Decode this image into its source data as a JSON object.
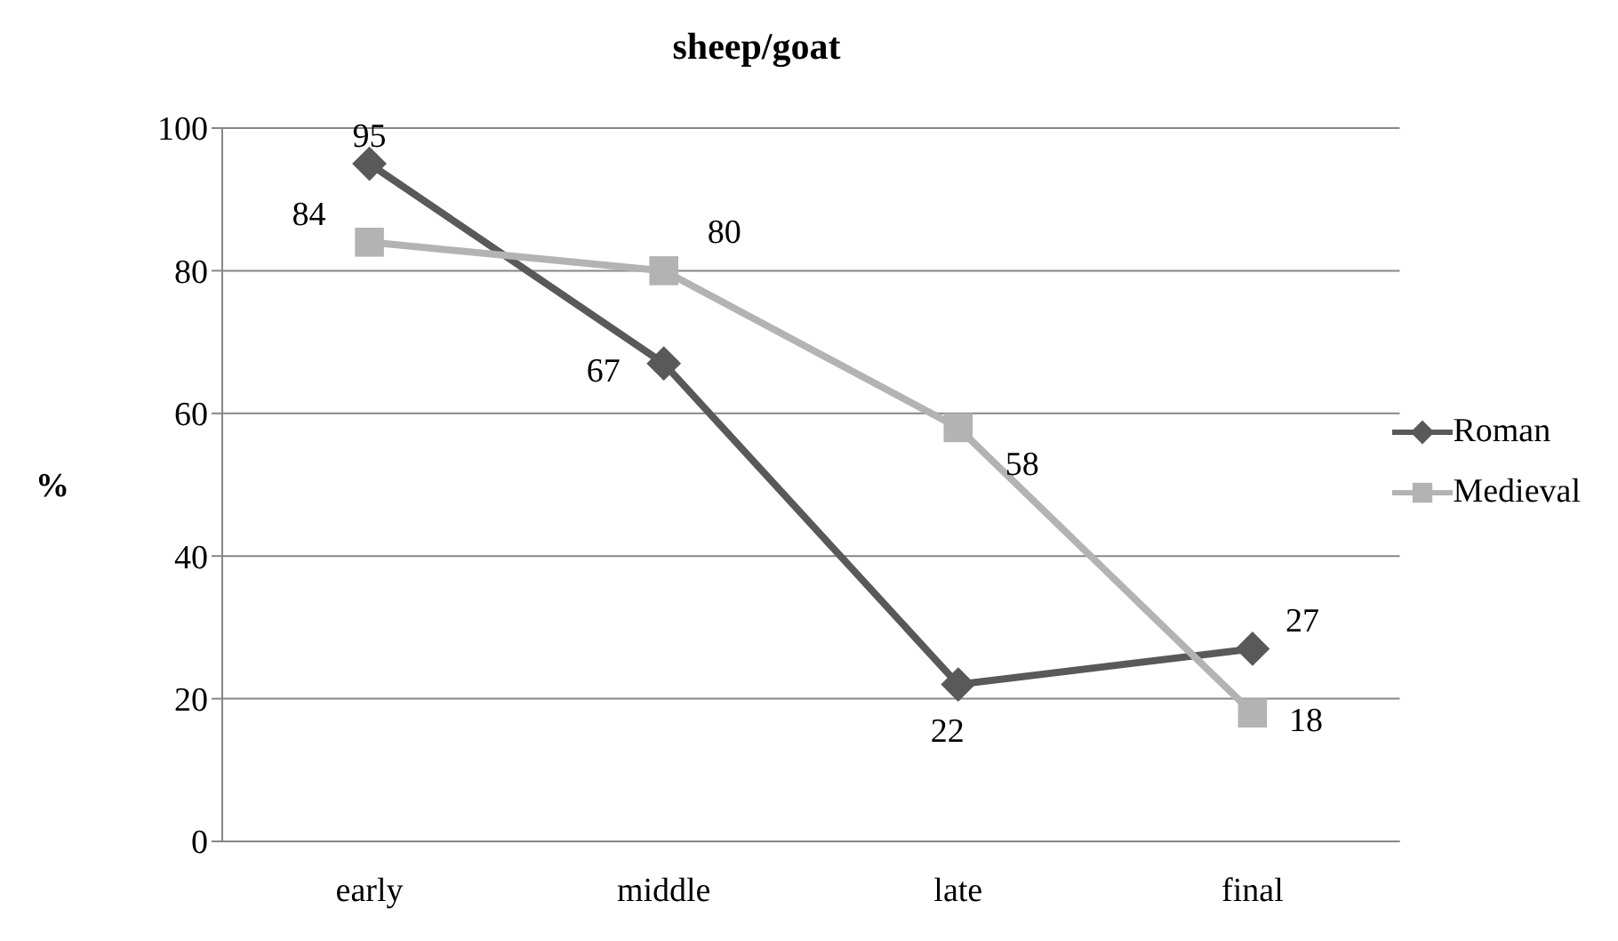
{
  "chart_data": {
    "type": "line",
    "title": "sheep/goat",
    "ylabel": "%",
    "categories": [
      "early",
      "middle",
      "late",
      "final"
    ],
    "series": [
      {
        "name": "Roman",
        "color": "#595959",
        "marker": "diamond",
        "values": [
          95,
          67,
          22,
          27
        ]
      },
      {
        "name": "Medieval",
        "color": "#b3b3b3",
        "marker": "square",
        "values": [
          84,
          80,
          58,
          18
        ]
      }
    ],
    "ylim": [
      0,
      100
    ],
    "yticks": [
      0,
      20,
      40,
      60,
      80,
      100
    ],
    "grid": "y",
    "legend": "right",
    "data_labels": true,
    "line_style": "solid"
  }
}
